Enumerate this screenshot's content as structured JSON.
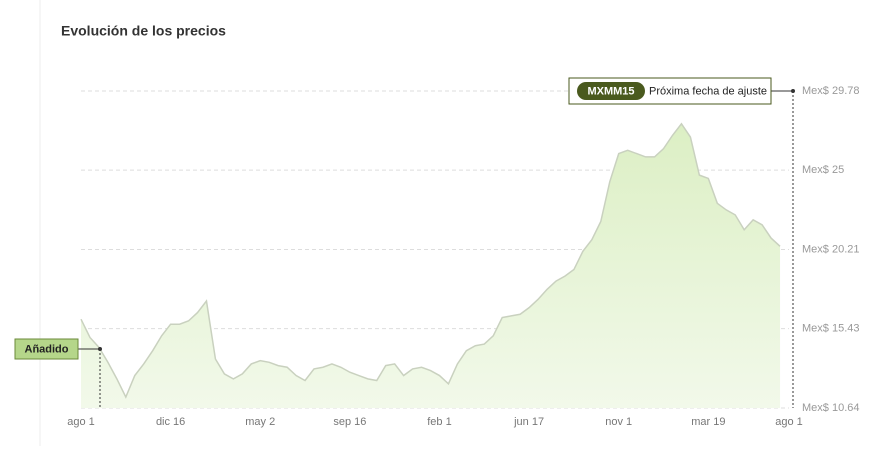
{
  "chart_data": {
    "type": "area",
    "title": "Evolución de los precios",
    "categories": [
      "ago 1",
      null,
      null,
      null,
      null,
      null,
      null,
      null,
      null,
      null,
      "dic 16",
      null,
      null,
      null,
      null,
      null,
      null,
      null,
      null,
      null,
      "may 2",
      null,
      null,
      null,
      null,
      null,
      null,
      null,
      null,
      null,
      "sep 16",
      null,
      null,
      null,
      null,
      null,
      null,
      null,
      null,
      null,
      "feb 1",
      null,
      null,
      null,
      null,
      null,
      null,
      null,
      null,
      null,
      "jun 17",
      null,
      null,
      null,
      null,
      null,
      null,
      null,
      null,
      null,
      "nov 1",
      null,
      null,
      null,
      null,
      null,
      null,
      null,
      null,
      null,
      "mar 19",
      null,
      null,
      null,
      null,
      null,
      null,
      null,
      null,
      "ago 1"
    ],
    "values": [
      16.0,
      14.9,
      14.3,
      13.4,
      12.4,
      11.3,
      12.6,
      13.3,
      14.1,
      15.0,
      15.7,
      15.7,
      15.9,
      16.4,
      17.1,
      13.6,
      12.7,
      12.4,
      12.7,
      13.3,
      13.5,
      13.4,
      13.2,
      13.1,
      12.6,
      12.3,
      13.0,
      13.1,
      13.3,
      13.1,
      12.8,
      12.6,
      12.4,
      12.3,
      13.2,
      13.3,
      12.6,
      13.0,
      13.1,
      12.9,
      12.6,
      12.1,
      13.3,
      14.1,
      14.4,
      14.5,
      15.0,
      16.1,
      16.2,
      16.3,
      16.7,
      17.2,
      17.8,
      18.3,
      18.6,
      19.0,
      20.1,
      20.8,
      21.9,
      24.3,
      26.0,
      26.2,
      26.0,
      25.8,
      25.8,
      26.3,
      27.1,
      27.8,
      27.0,
      24.7,
      24.5,
      23.0,
      22.6,
      22.3,
      21.4,
      22.0,
      21.7,
      20.9,
      20.4,
      null
    ],
    "color": "#e6f4d4",
    "line_color": "#c9d1bf",
    "ylim": [
      10.64,
      29.78
    ],
    "yticks": [
      {
        "value": 10.64,
        "label": "Mex$ 10.64"
      },
      {
        "value": 15.43,
        "label": "Mex$ 15.43"
      },
      {
        "value": 20.21,
        "label": "Mex$ 20.21"
      },
      {
        "value": 25,
        "label": "Mex$ 25"
      },
      {
        "value": 29.78,
        "label": "Mex$ 29.78"
      }
    ],
    "grid": true,
    "annotations": {
      "added": "Añadido",
      "badge": "MXMM15",
      "next_adjustment": "Próxima fecha de ajuste"
    }
  }
}
